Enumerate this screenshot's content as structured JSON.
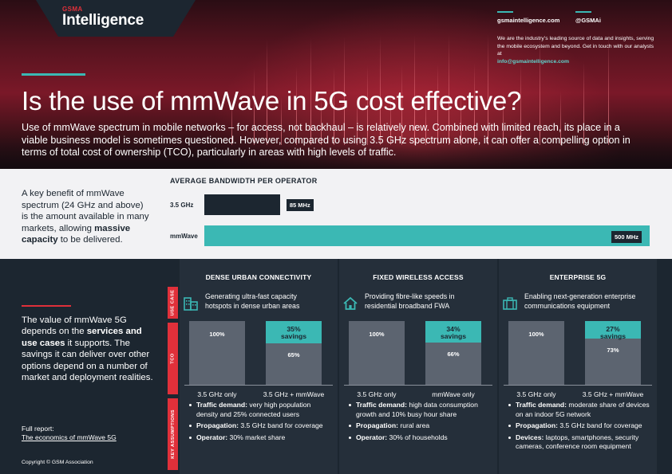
{
  "brand": {
    "small": "GSMA",
    "name": "Intelligence"
  },
  "contact": {
    "site": "gsmaintelligence.com",
    "handle": "@GSMAi",
    "blurb": "We are the industry’s leading source of data and insights, serving the mobile ecosystem and beyond. Get in touch with our analysts at",
    "email": "info@gsmaintelligence.com"
  },
  "title": "Is the use of mmWave in 5G cost effective?",
  "intro": "Use of mmWave spectrum in mobile networks – for access, not backhaul – is relatively new. Combined with limited reach, its place in a viable business model is sometimes questioned. However, compared to using 3.5 GHz spectrum alone, it can offer a compelling option in terms of total cost of ownership (TCO), particularly in areas with high levels of traffic.",
  "bandwidth": {
    "blurb_pre": "A key benefit of mmWave spectrum (24 GHz and above) is the amount available in many markets, allowing ",
    "blurb_bold": "massive capacity",
    "blurb_post": " to be delivered.",
    "chart_data": {
      "type": "bar",
      "title": "AVERAGE BANDWIDTH PER OPERATOR",
      "categories": [
        "3.5 GHz",
        "mmWave"
      ],
      "values": [
        85,
        500
      ],
      "value_labels": [
        "85 MHz",
        "500 MHz"
      ],
      "unit": "MHz",
      "orientation": "horizontal",
      "colors": [
        "#1c2630",
        "#3bb8b4"
      ]
    }
  },
  "left": {
    "blurb_pre": "The value of mmWave 5G depends on the ",
    "blurb_bold": "services and use cases",
    "blurb_post": " it supports. The savings it can deliver over other options depend on a number of market and deployment realities.",
    "report_label": "Full report:",
    "report_link": "The economics of mmWave 5G",
    "copyright": "Copyright © GSM Association"
  },
  "tags": {
    "use_case": "USE CASE",
    "tco": "TCO",
    "key_assumptions": "KEY ASSUMPTIONS"
  },
  "columns": [
    {
      "title": "DENSE URBAN CONNECTIVITY",
      "icon": "buildings-icon",
      "desc": "Generating ultra-fast capacity hotspots in dense urban areas",
      "tco_chart": {
        "type": "bar",
        "categories": [
          "3.5 GHz only",
          "3.5 GHz + mmWave"
        ],
        "values": [
          100,
          65
        ],
        "value_labels": [
          "100%",
          "65%"
        ],
        "savings": {
          "value": 35,
          "label": "35%",
          "word": "savings"
        }
      },
      "assumptions": [
        {
          "label": "Traffic demand:",
          "text": "very high population density and 25% connected users"
        },
        {
          "label": "Propagation:",
          "text": "3.5 GHz band for coverage"
        },
        {
          "label": "Operator:",
          "text": "30% market share"
        }
      ]
    },
    {
      "title": "FIXED WIRELESS ACCESS",
      "icon": "house-icon",
      "desc": "Providing fibre-like speeds in residential broadband FWA",
      "tco_chart": {
        "type": "bar",
        "categories": [
          "3.5 GHz only",
          "mmWave only"
        ],
        "values": [
          100,
          66
        ],
        "value_labels": [
          "100%",
          "66%"
        ],
        "savings": {
          "value": 34,
          "label": "34%",
          "word": "savings"
        }
      },
      "assumptions": [
        {
          "label": "Traffic demand:",
          "text": "high data consumption growth and 10% busy hour share"
        },
        {
          "label": "Propagation:",
          "text": "rural area"
        },
        {
          "label": "Operator:",
          "text": "30% of households"
        }
      ]
    },
    {
      "title": "ENTERPRISE 5G",
      "icon": "briefcase-icon",
      "desc": "Enabling next-generation enterprise communications equipment",
      "tco_chart": {
        "type": "bar",
        "categories": [
          "3.5 GHz only",
          "3.5 GHz + mmWave"
        ],
        "values": [
          100,
          73
        ],
        "value_labels": [
          "100%",
          "73%"
        ],
        "savings": {
          "value": 27,
          "label": "27%",
          "word": "savings"
        }
      },
      "assumptions": [
        {
          "label": "Traffic demand:",
          "text": "moderate share of devices on an indoor 5G network"
        },
        {
          "label": "Propagation:",
          "text": "3.5 GHz band for coverage"
        },
        {
          "label": "Devices:",
          "text": "laptops, smartphones, security cameras, conference room equipment"
        }
      ]
    }
  ],
  "colors": {
    "accent_teal": "#3bb8b4",
    "accent_red": "#e0303a",
    "navy": "#1c2630",
    "bar_grey": "#5c6470"
  }
}
